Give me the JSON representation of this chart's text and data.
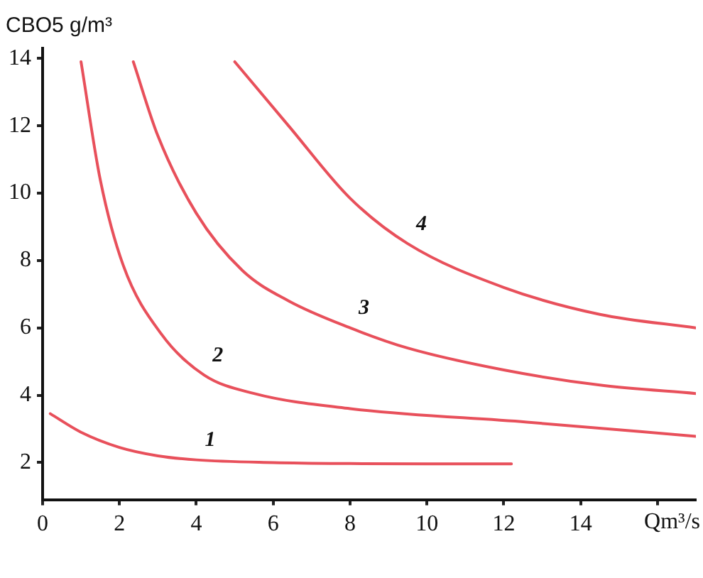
{
  "chart_data": {
    "type": "line",
    "ylabel": "CBO5 g/m³",
    "xlabel": "Qm³/s",
    "xlim": [
      0,
      17
    ],
    "ylim": [
      0.9,
      14.3
    ],
    "xticks": [
      0,
      2,
      4,
      6,
      8,
      10,
      12,
      14,
      {
        "value": 16,
        "label": null
      }
    ],
    "yticks": [
      2,
      4,
      6,
      8,
      10,
      12,
      14
    ],
    "grid": false,
    "legend": false,
    "marker": "none",
    "line_style": "solid",
    "series": [
      {
        "name": "1",
        "color": "#e8505b",
        "x": [
          0.2,
          1,
          2,
          3,
          4,
          6,
          8,
          10,
          12.2
        ],
        "values": [
          3.45,
          2.9,
          2.45,
          2.2,
          2.08,
          2.0,
          1.97,
          1.96,
          1.96
        ]
      },
      {
        "name": "2",
        "color": "#e8505b",
        "x": [
          1.0,
          1.5,
          2.1,
          3.1,
          4.2,
          5.5,
          8,
          12.6,
          17
        ],
        "values": [
          13.9,
          10.4,
          7.85,
          5.8,
          4.6,
          4.05,
          3.6,
          3.2,
          2.78
        ]
      },
      {
        "name": "3",
        "color": "#e8505b",
        "x": [
          2.36,
          3.0,
          4.0,
          5.2,
          6.4,
          8,
          9.5,
          12,
          14.5,
          17
        ],
        "values": [
          13.9,
          11.7,
          9.4,
          7.7,
          6.8,
          6.0,
          5.4,
          4.75,
          4.3,
          4.05
        ]
      },
      {
        "name": "4",
        "color": "#e8505b",
        "x": [
          5.0,
          6.4,
          8,
          9.5,
          12,
          14.5,
          17
        ],
        "values": [
          13.9,
          12.0,
          9.85,
          8.5,
          7.2,
          6.4,
          6.0
        ]
      }
    ]
  }
}
